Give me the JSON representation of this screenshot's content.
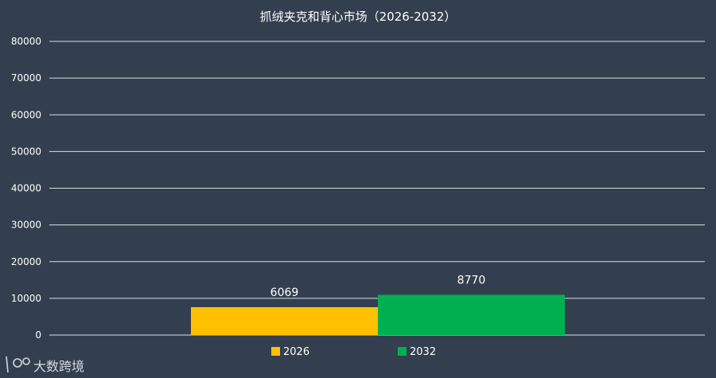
{
  "chart_data": {
    "type": "bar",
    "title": "抓绒夹克和背心市场（2026-2032）",
    "categories": [
      "2026",
      "2032"
    ],
    "values": [
      6069,
      8770
    ],
    "data_labels": [
      "6069",
      "8770"
    ],
    "colors": [
      "#ffc000",
      "#00b050"
    ],
    "ylim": [
      0,
      80000
    ],
    "yticks": [
      0,
      10000,
      20000,
      30000,
      40000,
      50000,
      60000,
      70000,
      80000
    ],
    "grid": true,
    "legend": {
      "placement": "bottom",
      "entries": [
        "2026",
        "2032"
      ]
    }
  },
  "watermark": {
    "icon": "logo-icon",
    "text": "大数跨境"
  }
}
